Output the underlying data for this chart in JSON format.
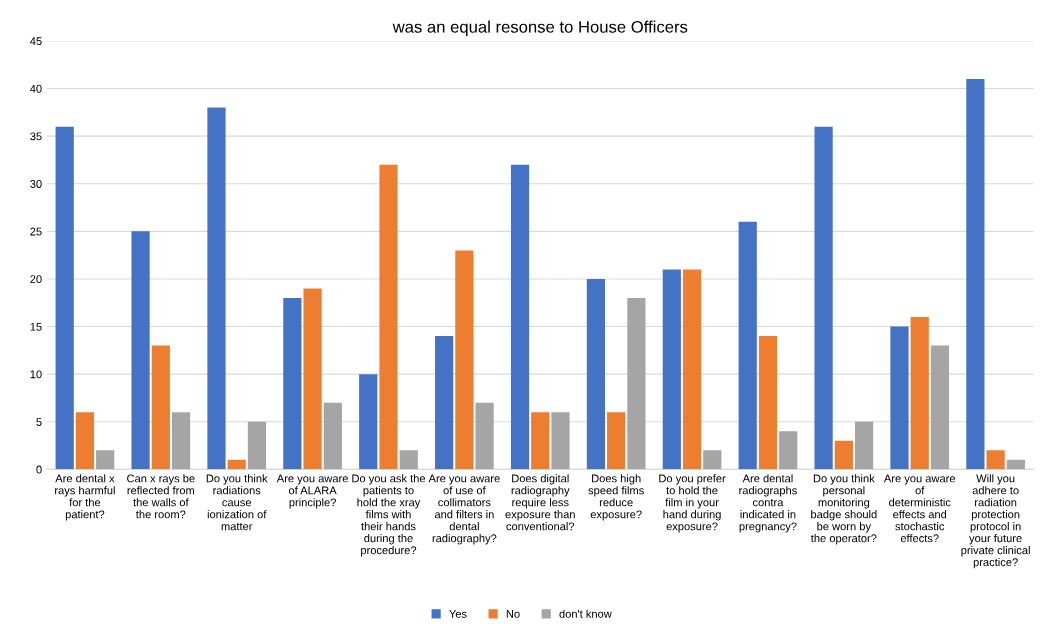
{
  "chart_data": {
    "type": "bar",
    "title": "was an equal resonse to House Officers",
    "categories": [
      "Are dental x\nrays harmful\nfor the\npatient?",
      "Can x rays be\nreflected from\nthe walls of\nthe room?",
      "Do you think\nradiations\ncause\nionization of\nmatter",
      "Are you aware\nof ALARA\nprinciple?",
      "Do you ask the\npatients to\nhold the xray\nfilms with\ntheir hands\nduring the\nprocedure?",
      "Are you aware\nof use of\ncollimators\nand filters in\ndental\nradiography?",
      "Does digital\nradiography\nrequire less\nexposure than\nconventional?",
      "Does high\nspeed films\nreduce\nexposure?",
      "Do you prefer\nto hold the\nfilm in your\nhand during\nexposure?",
      "Are dental\nradiographs\ncontra\nindicated in\npregnancy?",
      "Do you think\npersonal\nmonitoring\nbadge should\nbe worn by\nthe operator?",
      "Are you aware\nof\ndeterministic\neffects and\nstochastic\neffects?",
      "Will you\nadhere to\nradiation\nprotection\nprotocol in\nyour future\nprivate clinical\npractice?"
    ],
    "series": [
      {
        "name": "Yes",
        "color": "#4472c4",
        "values": [
          36,
          25,
          38,
          18,
          10,
          14,
          32,
          20,
          21,
          26,
          36,
          15,
          41
        ]
      },
      {
        "name": "No",
        "color": "#ed7d31",
        "values": [
          6,
          13,
          1,
          19,
          32,
          23,
          6,
          6,
          21,
          14,
          3,
          16,
          2
        ]
      },
      {
        "name": "don't know",
        "color": "#a5a5a5",
        "values": [
          2,
          6,
          5,
          7,
          2,
          7,
          6,
          18,
          2,
          4,
          5,
          13,
          1
        ]
      }
    ],
    "ylim": [
      0,
      45
    ],
    "yticks": [
      0,
      5,
      10,
      15,
      20,
      25,
      30,
      35,
      40,
      45
    ],
    "grid": "y",
    "legend": "bottom"
  }
}
